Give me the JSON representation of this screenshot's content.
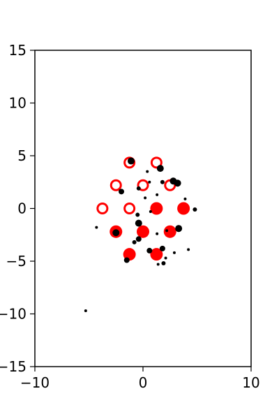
{
  "chart_data": {
    "type": "scatter",
    "title": "",
    "xlabel": "",
    "ylabel": "",
    "xlim": [
      -10,
      10
    ],
    "ylim": [
      -15,
      15
    ],
    "grid": false,
    "x_ticks": [
      -10,
      0,
      10
    ],
    "x_tick_labels": [
      "−10",
      "0",
      "10"
    ],
    "y_ticks": [
      -15,
      -10,
      -5,
      0,
      5,
      10,
      15
    ],
    "y_tick_labels": [
      "−15",
      "−10",
      "−5",
      "0",
      "5",
      "10",
      "15"
    ],
    "colors": {
      "red": "#ff0000",
      "black": "#000000"
    },
    "series": [
      {
        "style": "hollow-circle",
        "color": "#ff0000",
        "points": [
          {
            "x": -1.25,
            "y": 4.35
          },
          {
            "x": 1.25,
            "y": 4.35
          },
          {
            "x": -2.5,
            "y": 2.2
          },
          {
            "x": 0.0,
            "y": 2.2
          },
          {
            "x": 2.5,
            "y": 2.2
          },
          {
            "x": -3.75,
            "y": 0.0
          },
          {
            "x": -1.25,
            "y": 0.0
          }
        ]
      },
      {
        "style": "filled-circle",
        "color": "#ff0000",
        "points": [
          {
            "x": 1.25,
            "y": 0.0
          },
          {
            "x": 3.75,
            "y": 0.0
          },
          {
            "x": -2.5,
            "y": -2.2
          },
          {
            "x": 0.0,
            "y": -2.2
          },
          {
            "x": 2.5,
            "y": -2.2
          },
          {
            "x": -1.25,
            "y": -4.35
          },
          {
            "x": 1.25,
            "y": -4.35
          }
        ]
      },
      {
        "style": "dot",
        "color": "#000000",
        "points": [
          {
            "x": -1.1,
            "y": 4.5,
            "s": 5
          },
          {
            "x": 1.6,
            "y": 3.8,
            "s": 5
          },
          {
            "x": 0.4,
            "y": 3.5,
            "s": 2
          },
          {
            "x": 2.8,
            "y": 2.6,
            "s": 5
          },
          {
            "x": 3.2,
            "y": 2.4,
            "s": 5
          },
          {
            "x": 1.8,
            "y": 2.5,
            "s": 3
          },
          {
            "x": 0.6,
            "y": 2.5,
            "s": 2
          },
          {
            "x": -0.4,
            "y": 1.9,
            "s": 3
          },
          {
            "x": -2.0,
            "y": 1.6,
            "s": 4
          },
          {
            "x": 1.3,
            "y": 1.3,
            "s": 2
          },
          {
            "x": 0.2,
            "y": 1.0,
            "s": 2
          },
          {
            "x": 3.9,
            "y": 0.9,
            "s": 2
          },
          {
            "x": 4.8,
            "y": -0.1,
            "s": 3
          },
          {
            "x": 0.7,
            "y": -0.3,
            "s": 2
          },
          {
            "x": -0.5,
            "y": -0.6,
            "s": 3
          },
          {
            "x": -0.4,
            "y": -1.4,
            "s": 5
          },
          {
            "x": -4.3,
            "y": -1.8,
            "s": 2
          },
          {
            "x": 3.3,
            "y": -1.9,
            "s": 5
          },
          {
            "x": 2.2,
            "y": -2.1,
            "s": 2
          },
          {
            "x": 1.3,
            "y": -2.4,
            "s": 2
          },
          {
            "x": -2.5,
            "y": -2.3,
            "s": 5
          },
          {
            "x": -0.4,
            "y": -2.9,
            "s": 4
          },
          {
            "x": -0.8,
            "y": -3.2,
            "s": 3
          },
          {
            "x": 1.8,
            "y": -3.8,
            "s": 4
          },
          {
            "x": 4.2,
            "y": -3.9,
            "s": 2
          },
          {
            "x": 0.6,
            "y": -4.0,
            "s": 4
          },
          {
            "x": 2.9,
            "y": -4.2,
            "s": 2
          },
          {
            "x": 2.1,
            "y": -4.7,
            "s": 2
          },
          {
            "x": -1.5,
            "y": -4.9,
            "s": 4
          },
          {
            "x": 1.4,
            "y": -5.3,
            "s": 2
          },
          {
            "x": 1.9,
            "y": -5.2,
            "s": 3
          },
          {
            "x": -5.3,
            "y": -9.7,
            "s": 2
          }
        ]
      }
    ]
  }
}
